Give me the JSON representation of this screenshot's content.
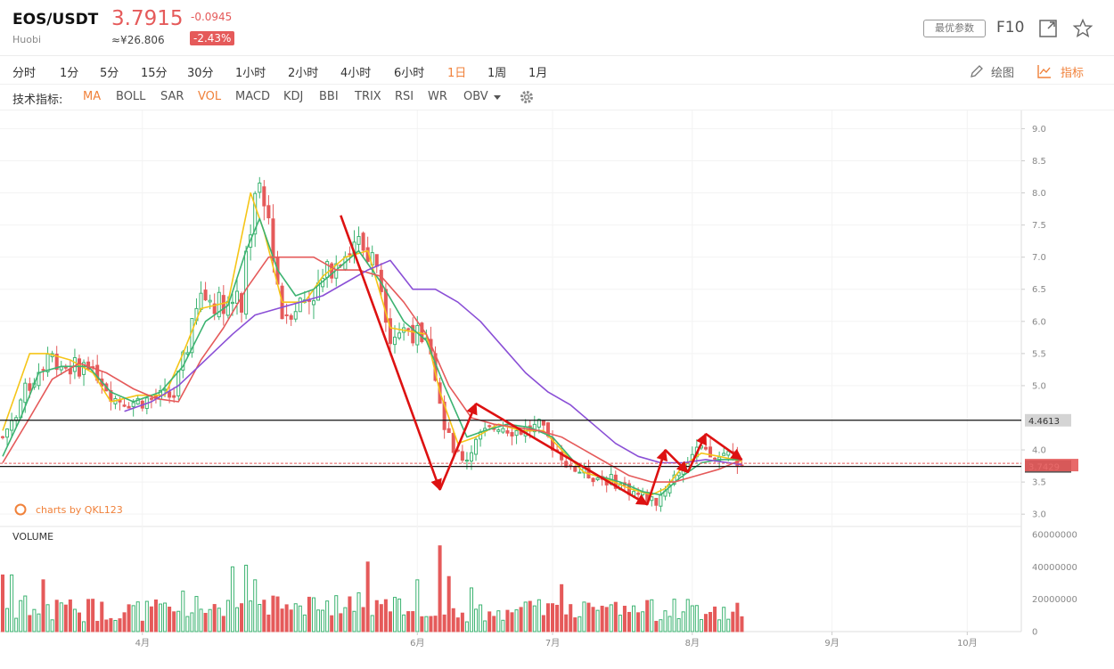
{
  "header": {
    "symbol": "EOS/USDT",
    "exchange": "Huobi",
    "price": "3.7915",
    "price_cny": "≈¥26.806",
    "change": "-0.0945",
    "change_pct": "-2.43%",
    "param_button": "最优参数",
    "f10": "F10"
  },
  "timeframes": [
    {
      "label": "分时"
    },
    {
      "label": "1分"
    },
    {
      "label": "5分"
    },
    {
      "label": "15分"
    },
    {
      "label": "30分"
    },
    {
      "label": "1小时"
    },
    {
      "label": "2小时"
    },
    {
      "label": "4小时"
    },
    {
      "label": "6小时"
    },
    {
      "label": "1日",
      "active": true
    },
    {
      "label": "1周"
    },
    {
      "label": "1月"
    }
  ],
  "tools": {
    "draw": "绘图",
    "indicator": "指标"
  },
  "indicators": {
    "label": "技术指标:",
    "items": [
      {
        "label": "MA",
        "active": true
      },
      {
        "label": "BOLL"
      },
      {
        "label": "SAR"
      },
      {
        "label": "VOL",
        "active": true
      },
      {
        "label": "MACD"
      },
      {
        "label": "KDJ"
      },
      {
        "label": "BBI"
      },
      {
        "label": "TRIX"
      },
      {
        "label": "RSI"
      },
      {
        "label": "WR"
      },
      {
        "label": "OBV"
      }
    ]
  },
  "colors": {
    "up": "#3cb371",
    "down": "#e55a5a",
    "accent": "#f0813a",
    "ma5": "#f5c518",
    "ma10": "#3cb371",
    "ma30": "#e55a5a",
    "ma60": "#8a4fd6",
    "arrow": "#dd1111"
  },
  "chart_data": {
    "type": "candlestick",
    "title": "EOS/USDT 1日",
    "watermark": "charts by QKL123",
    "ylim": [
      2.85,
      9.2
    ],
    "y_ticks": [
      "9.0",
      "8.5",
      "8.0",
      "7.5",
      "7.0",
      "6.5",
      "6.0",
      "5.5",
      "5.0",
      "4.0",
      "3.5",
      "3.0"
    ],
    "x_ticks": [
      {
        "label": "4月",
        "day": 31
      },
      {
        "label": "6月",
        "day": 92
      },
      {
        "label": "7月",
        "day": 122
      },
      {
        "label": "8月",
        "day": 153
      },
      {
        "label": "9月",
        "day": 184
      },
      {
        "label": "10月",
        "day": 214
      }
    ],
    "x_range": [
      0,
      226
    ],
    "hlines": [
      {
        "value": 4.4613,
        "label": "4.4613"
      },
      {
        "value": 3.7429,
        "label": "3.7429"
      }
    ],
    "current_price": 3.7915,
    "close_anchors": [
      [
        0,
        4.2
      ],
      [
        5,
        4.9
      ],
      [
        10,
        5.5
      ],
      [
        14,
        5.3
      ],
      [
        20,
        5.3
      ],
      [
        25,
        4.8
      ],
      [
        29,
        4.75
      ],
      [
        34,
        4.8
      ],
      [
        38,
        4.85
      ],
      [
        44,
        6.4
      ],
      [
        47,
        6.3
      ],
      [
        53,
        6.3
      ],
      [
        56,
        8.1
      ],
      [
        59,
        7.6
      ],
      [
        62,
        6.1
      ],
      [
        66,
        6.3
      ],
      [
        70,
        6.5
      ],
      [
        74,
        7.0
      ],
      [
        79,
        7.2
      ],
      [
        83,
        6.9
      ],
      [
        86,
        5.8
      ],
      [
        90,
        5.9
      ],
      [
        95,
        5.6
      ],
      [
        98,
        4.3
      ],
      [
        102,
        3.8
      ],
      [
        106,
        4.2
      ],
      [
        110,
        4.4
      ],
      [
        114,
        4.3
      ],
      [
        119,
        4.35
      ],
      [
        123,
        4.0
      ],
      [
        127,
        3.7
      ],
      [
        131,
        3.6
      ],
      [
        136,
        3.5
      ],
      [
        141,
        3.3
      ],
      [
        145,
        3.2
      ],
      [
        148,
        3.5
      ],
      [
        151,
        3.8
      ],
      [
        154,
        4.0
      ],
      [
        158,
        3.85
      ],
      [
        161,
        3.95
      ],
      [
        164,
        3.79
      ]
    ],
    "ma_series": [
      {
        "name": "MA5",
        "values": [
          [
            0,
            4.3
          ],
          [
            3,
            4.9
          ],
          [
            6,
            5.5
          ],
          [
            10,
            5.5
          ],
          [
            15,
            5.4
          ],
          [
            20,
            5.2
          ],
          [
            24,
            4.75
          ],
          [
            30,
            4.85
          ],
          [
            36,
            4.85
          ],
          [
            40,
            5.5
          ],
          [
            44,
            6.2
          ],
          [
            50,
            6.3
          ],
          [
            55,
            8.0
          ],
          [
            58,
            7.4
          ],
          [
            62,
            6.3
          ],
          [
            67,
            6.3
          ],
          [
            71,
            6.7
          ],
          [
            76,
            7.0
          ],
          [
            81,
            7.1
          ],
          [
            86,
            5.9
          ],
          [
            90,
            5.85
          ],
          [
            94,
            5.8
          ],
          [
            97,
            4.9
          ],
          [
            101,
            4.1
          ],
          [
            105,
            4.2
          ],
          [
            110,
            4.4
          ],
          [
            115,
            4.3
          ],
          [
            120,
            4.3
          ],
          [
            124,
            4.0
          ],
          [
            129,
            3.65
          ],
          [
            134,
            3.55
          ],
          [
            139,
            3.4
          ],
          [
            144,
            3.3
          ],
          [
            147,
            3.4
          ],
          [
            151,
            3.75
          ],
          [
            155,
            3.95
          ],
          [
            159,
            3.9
          ],
          [
            164,
            3.82
          ]
        ]
      },
      {
        "name": "MA10",
        "values": [
          [
            0,
            3.9
          ],
          [
            4,
            4.5
          ],
          [
            8,
            5.2
          ],
          [
            13,
            5.3
          ],
          [
            19,
            5.3
          ],
          [
            24,
            4.9
          ],
          [
            29,
            4.75
          ],
          [
            35,
            4.9
          ],
          [
            40,
            5.3
          ],
          [
            45,
            6.0
          ],
          [
            50,
            6.25
          ],
          [
            54,
            7.1
          ],
          [
            57,
            7.6
          ],
          [
            61,
            6.8
          ],
          [
            65,
            6.4
          ],
          [
            69,
            6.5
          ],
          [
            74,
            6.8
          ],
          [
            79,
            7.1
          ],
          [
            84,
            6.6
          ],
          [
            89,
            6.0
          ],
          [
            94,
            5.7
          ],
          [
            98,
            5.0
          ],
          [
            103,
            4.2
          ],
          [
            107,
            4.3
          ],
          [
            112,
            4.4
          ],
          [
            117,
            4.35
          ],
          [
            122,
            4.2
          ],
          [
            127,
            3.8
          ],
          [
            132,
            3.6
          ],
          [
            137,
            3.5
          ],
          [
            142,
            3.35
          ],
          [
            146,
            3.3
          ],
          [
            150,
            3.55
          ],
          [
            155,
            3.8
          ],
          [
            159,
            3.85
          ],
          [
            164,
            3.85
          ]
        ]
      },
      {
        "name": "MA30",
        "values": [
          [
            0,
            3.8
          ],
          [
            6,
            4.5
          ],
          [
            11,
            5.1
          ],
          [
            17,
            5.35
          ],
          [
            23,
            5.2
          ],
          [
            29,
            4.95
          ],
          [
            34,
            4.8
          ],
          [
            39,
            4.75
          ],
          [
            44,
            5.4
          ],
          [
            49,
            5.9
          ],
          [
            54,
            6.5
          ],
          [
            59,
            7.0
          ],
          [
            64,
            7.0
          ],
          [
            69,
            7.0
          ],
          [
            74,
            6.8
          ],
          [
            79,
            6.8
          ],
          [
            84,
            6.7
          ],
          [
            89,
            6.3
          ],
          [
            94,
            5.8
          ],
          [
            99,
            5.0
          ],
          [
            104,
            4.5
          ],
          [
            109,
            4.4
          ],
          [
            114,
            4.35
          ],
          [
            119,
            4.3
          ],
          [
            124,
            4.2
          ],
          [
            129,
            4.0
          ],
          [
            134,
            3.8
          ],
          [
            139,
            3.6
          ],
          [
            144,
            3.5
          ],
          [
            149,
            3.5
          ],
          [
            154,
            3.6
          ],
          [
            159,
            3.7
          ],
          [
            164,
            3.85
          ]
        ]
      },
      {
        "name": "MA60",
        "values": [
          [
            27,
            4.6
          ],
          [
            33,
            4.75
          ],
          [
            39,
            5.0
          ],
          [
            45,
            5.4
          ],
          [
            51,
            5.8
          ],
          [
            56,
            6.1
          ],
          [
            61,
            6.2
          ],
          [
            66,
            6.3
          ],
          [
            71,
            6.4
          ],
          [
            76,
            6.6
          ],
          [
            81,
            6.8
          ],
          [
            86,
            6.95
          ],
          [
            91,
            6.5
          ],
          [
            96,
            6.5
          ],
          [
            101,
            6.3
          ],
          [
            106,
            6.0
          ],
          [
            111,
            5.6
          ],
          [
            116,
            5.2
          ],
          [
            121,
            4.9
          ],
          [
            126,
            4.7
          ],
          [
            131,
            4.4
          ],
          [
            136,
            4.1
          ],
          [
            141,
            3.9
          ],
          [
            146,
            3.8
          ],
          [
            151,
            3.8
          ],
          [
            156,
            3.85
          ],
          [
            161,
            3.8
          ],
          [
            164,
            3.77
          ]
        ]
      }
    ],
    "annotations": [
      {
        "from": [
          75,
          7.65
        ],
        "to": [
          97,
          3.38
        ]
      },
      {
        "from": [
          97,
          3.38
        ],
        "to": [
          105,
          4.72
        ]
      },
      {
        "from": [
          105,
          4.72
        ],
        "to": [
          143,
          3.15
        ]
      },
      {
        "from": [
          143,
          3.15
        ],
        "to": [
          147,
          4.0
        ]
      },
      {
        "from": [
          147,
          4.0
        ],
        "to": [
          152,
          3.65
        ]
      },
      {
        "from": [
          152,
          3.65
        ],
        "to": [
          156,
          4.25
        ]
      },
      {
        "from": [
          156,
          4.25
        ],
        "to": [
          164,
          3.85
        ]
      }
    ],
    "volume": {
      "label": "VOLUME",
      "ylim": [
        0,
        60000000
      ],
      "y_ticks": [
        "60000000",
        "40000000",
        "20000000",
        "0"
      ],
      "spikes": [
        [
          0,
          35000000
        ],
        [
          2,
          35000000
        ],
        [
          5,
          22000000
        ],
        [
          9,
          32000000
        ],
        [
          20,
          20000000
        ],
        [
          40,
          25000000
        ],
        [
          51,
          40000000
        ],
        [
          54,
          41000000
        ],
        [
          56,
          32000000
        ],
        [
          79,
          24000000
        ],
        [
          81,
          43000000
        ],
        [
          92,
          32000000
        ],
        [
          97,
          53000000
        ],
        [
          99,
          34000000
        ],
        [
          104,
          27000000
        ],
        [
          124,
          29000000
        ],
        [
          149,
          20000000
        ],
        [
          160,
          15000000
        ]
      ]
    }
  }
}
